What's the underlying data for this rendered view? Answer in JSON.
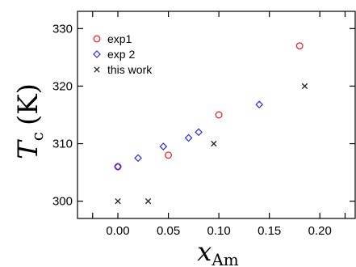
{
  "chart_data": {
    "type": "scatter",
    "title": "",
    "xlabel_main": "x",
    "xlabel_sub": "Am",
    "ylabel_main": "T",
    "ylabel_sub": "c",
    "ylabel_unit": "(K)",
    "xlim": [
      -0.04,
      0.235
    ],
    "ylim": [
      297,
      333
    ],
    "x_ticks": [
      0.0,
      0.05,
      0.1,
      0.15,
      0.2
    ],
    "x_tick_labels": [
      "0.00",
      "0.05",
      "0.10",
      "0.15",
      "0.20"
    ],
    "y_ticks": [
      300,
      310,
      320,
      330
    ],
    "y_tick_labels": [
      "300",
      "310",
      "320",
      "330"
    ],
    "grid": false,
    "legend_position": "top-left",
    "series": [
      {
        "name": "exp1",
        "marker": "circle",
        "color": "#e8242b",
        "points": [
          [
            0.0,
            306
          ],
          [
            0.05,
            308
          ],
          [
            0.1,
            315
          ],
          [
            0.18,
            327
          ]
        ]
      },
      {
        "name": "exp 2",
        "marker": "diamond",
        "color": "#2a2ae6",
        "points": [
          [
            0.0,
            306
          ],
          [
            0.02,
            307.5
          ],
          [
            0.045,
            309.5
          ],
          [
            0.07,
            311
          ],
          [
            0.08,
            312
          ],
          [
            0.14,
            316.8
          ]
        ]
      },
      {
        "name": "this work",
        "marker": "x",
        "color": "#222222",
        "points": [
          [
            0.0,
            300
          ],
          [
            0.03,
            300
          ],
          [
            0.095,
            310
          ],
          [
            0.185,
            320
          ]
        ]
      }
    ]
  }
}
